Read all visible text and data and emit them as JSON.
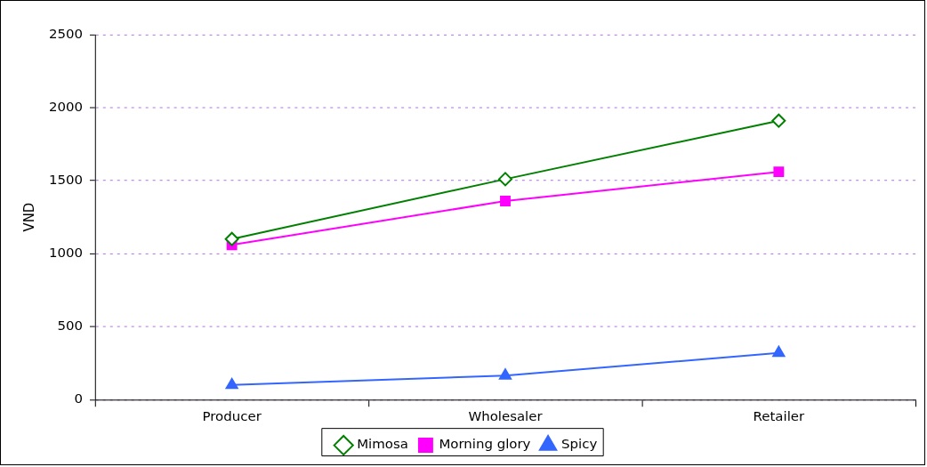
{
  "chart_data": {
    "type": "line",
    "ylabel": "VND",
    "categories": [
      "Producer",
      "Wholesaler",
      "Retailer"
    ],
    "series": [
      {
        "name": "Mimosa",
        "color": "#008000",
        "values": [
          1100,
          1510,
          1910
        ],
        "marker": "diamond"
      },
      {
        "name": "Morning glory",
        "color": "#ff00ff",
        "values": [
          1060,
          1360,
          1560
        ],
        "marker": "square"
      },
      {
        "name": "Spicy",
        "color": "#3366ff",
        "values": [
          100,
          165,
          320
        ],
        "marker": "triangle"
      }
    ],
    "ylim": [
      0,
      2500
    ],
    "yticks": [
      0,
      500,
      1000,
      1500,
      2000,
      2500
    ],
    "grid": "y",
    "legend": "bottom",
    "line_style": "solid"
  }
}
